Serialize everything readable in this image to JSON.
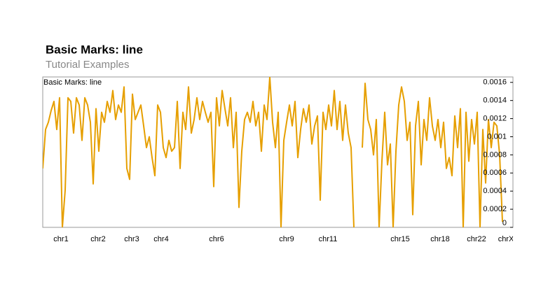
{
  "chart_data": {
    "type": "line",
    "title": "Basic Marks: line",
    "subtitle": "Tutorial Examples",
    "track_title": "Basic Marks: line",
    "series": [
      {
        "color": "#e69f00",
        "values": [
          0.00065,
          0.00108,
          0.00116,
          0.00129,
          0.00139,
          0.00108,
          0.00143,
          0,
          0.00041,
          0.00143,
          0.00139,
          0.00104,
          0.00143,
          0.00135,
          0.00096,
          0.00143,
          0.00135,
          0.00116,
          0.00048,
          0.00131,
          0.00084,
          0.00127,
          0.00116,
          0.00139,
          0.00127,
          0.00151,
          0.00119,
          0.00135,
          0.00127,
          0.00155,
          0.00065,
          0.00053,
          0.00147,
          0.00119,
          0.00127,
          0.00135,
          0.00112,
          0.00088,
          0.001,
          0.00077,
          0.00057,
          0.00135,
          0.00127,
          0.00088,
          0.00077,
          0.00096,
          0.00084,
          0.00088,
          0.00139,
          0.00065,
          0.00127,
          0.00108,
          0.00155,
          0.00104,
          0.00119,
          0.00143,
          0.00119,
          0.00139,
          0.00127,
          0.00116,
          0.00127,
          0.00045,
          0.00143,
          0.00112,
          0.00151,
          0.00131,
          0.00112,
          0.00143,
          0.00088,
          0.00127,
          0.00022,
          0.00084,
          0.00119,
          0.00127,
          0.00116,
          0.00139,
          0.00112,
          0.00127,
          0.00084,
          0.00135,
          0.00119,
          0.00166,
          0.00116,
          0.00088,
          0.00127,
          0,
          0.00096,
          0.00116,
          0.00135,
          0.00112,
          0.00139,
          0.00077,
          0.00108,
          0.00131,
          0.00116,
          0.00135,
          0.00092,
          0.00112,
          0.00123,
          0.0003,
          0.00127,
          0.00108,
          0.00135,
          0.00112,
          0.00151,
          0.00108,
          0.00139,
          0.00096,
          0.00135,
          0.00104,
          0.00088,
          0,
          null,
          null,
          0.00088,
          0.00159,
          0.00119,
          0.00108,
          0.0008,
          0.00119,
          0,
          0.00073,
          0.00127,
          0.00069,
          0.00092,
          0,
          0.00084,
          0.00135,
          0.00155,
          0.00139,
          0.00096,
          0.00116,
          0.00014,
          0.00112,
          0.00139,
          0.00069,
          0.00119,
          0.00096,
          0.00143,
          0.00112,
          0.00096,
          0.00119,
          0.00088,
          0.00116,
          0.00065,
          0.00077,
          0.00057,
          0.00123,
          0.00088,
          0.00131,
          0,
          0.00127,
          0.00073,
          0.00119,
          0.00092,
          0.00127,
          0,
          0.00108,
          0.00049,
          0.00119,
          0.00088,
          0.00116,
          0.00112,
          0.0008,
          6e-05
        ]
      }
    ],
    "xlim": [
      0,
      167.75
    ],
    "xticks": [
      {
        "value": 6.5,
        "label": "chr1"
      },
      {
        "value": 19.75,
        "label": "chr2"
      },
      {
        "value": 31.75,
        "label": "chr3"
      },
      {
        "value": 42.25,
        "label": "chr4"
      },
      {
        "value": 62,
        "label": "chr6"
      },
      {
        "value": 87,
        "label": "chr9"
      },
      {
        "value": 101.75,
        "label": "chr11"
      },
      {
        "value": 127.5,
        "label": "chr15"
      },
      {
        "value": 141.75,
        "label": "chr18"
      },
      {
        "value": 154.75,
        "label": "chr22"
      },
      {
        "value": 165.25,
        "label": "chrX"
      }
    ],
    "ylim": [
      0,
      0.00166
    ],
    "yticks": [
      0,
      0.0002,
      0.0004,
      0.0006,
      0.0008,
      0.001,
      0.0012,
      0.0014,
      0.0016
    ]
  }
}
